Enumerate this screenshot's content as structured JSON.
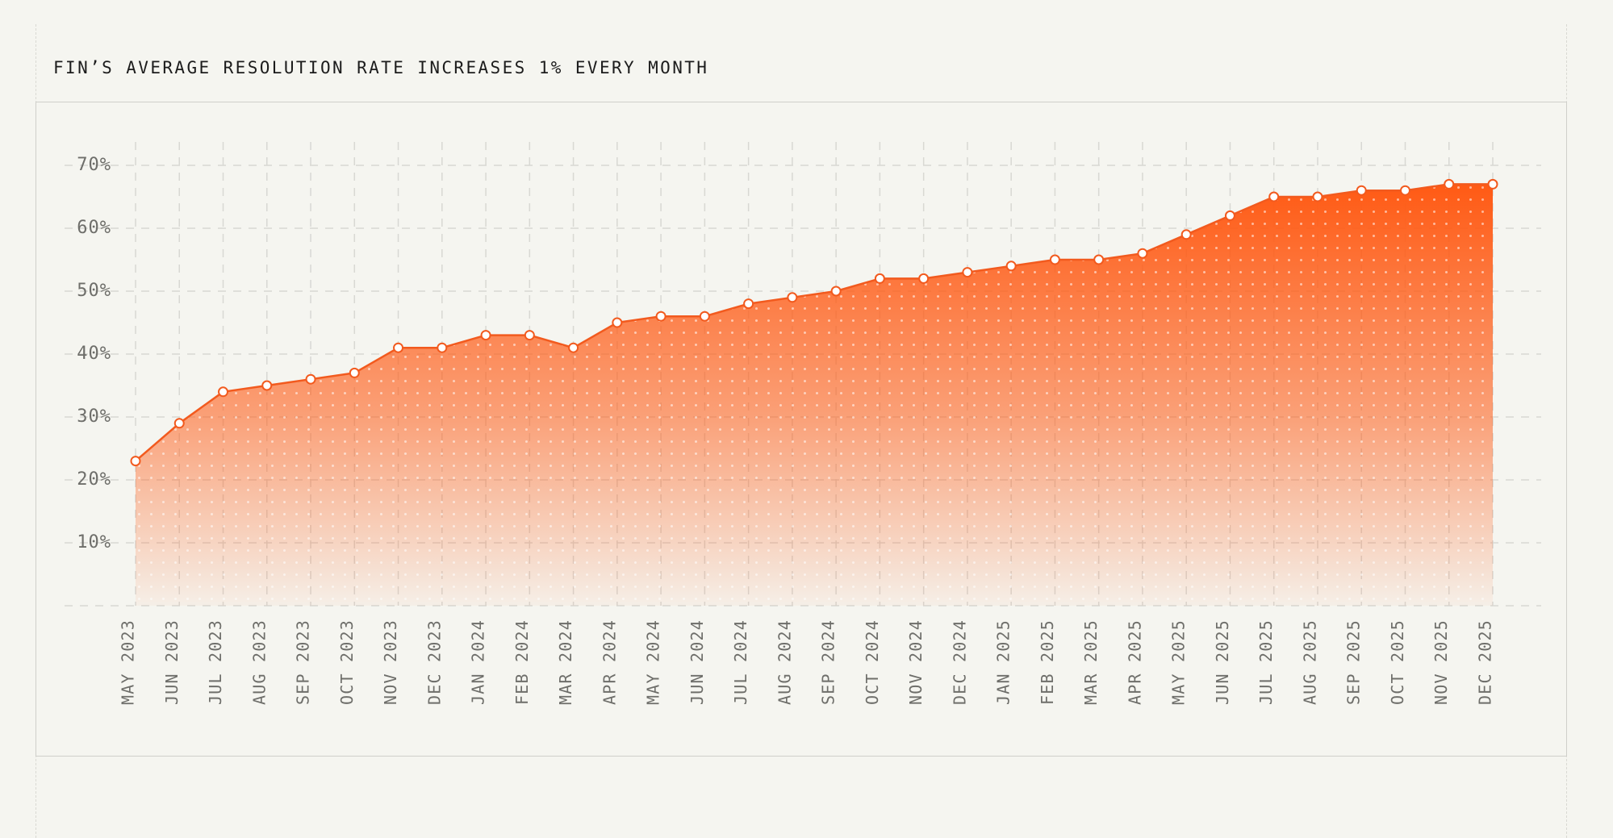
{
  "chart_data": {
    "type": "area",
    "title": "FIN’S AVERAGE RESOLUTION RATE INCREASES 1% EVERY MONTH",
    "xlabel": "",
    "ylabel": "",
    "categories": [
      "MAY 2023",
      "JUN 2023",
      "JUL 2023",
      "AUG 2023",
      "SEP 2023",
      "OCT 2023",
      "NOV 2023",
      "DEC 2023",
      "JAN 2024",
      "FEB 2024",
      "MAR 2024",
      "APR 2024",
      "MAY 2024",
      "JUN 2024",
      "JUL 2024",
      "AUG 2024",
      "SEP 2024",
      "OCT 2024",
      "NOV 2024",
      "DEC 2024",
      "JAN 2025",
      "FEB 2025",
      "MAR 2025",
      "APR 2025",
      "MAY 2025",
      "JUN 2025",
      "JUL 2025",
      "AUG 2025",
      "SEP 2025",
      "OCT 2025",
      "NOV 2025",
      "DEC 2025"
    ],
    "series": [
      {
        "values": [
          23,
          29,
          34,
          35,
          36,
          37,
          41,
          41,
          43,
          43,
          41,
          45,
          46,
          46,
          48,
          49,
          50,
          52,
          52,
          53,
          54,
          55,
          55,
          56,
          59,
          62,
          65,
          65,
          66,
          66,
          67,
          67
        ]
      }
    ],
    "ylim": [
      0,
      70
    ],
    "yticks": [
      {
        "value": 10,
        "label": "10%"
      },
      {
        "value": 20,
        "label": "20%"
      },
      {
        "value": 30,
        "label": "30%"
      },
      {
        "value": 40,
        "label": "40%"
      },
      {
        "value": 50,
        "label": "50%"
      },
      {
        "value": 60,
        "label": "60%"
      },
      {
        "value": 70,
        "label": "70%"
      }
    ],
    "grid": true,
    "legend": "none",
    "colors": {
      "accent": "#ff5a14",
      "line": "#f25a1e",
      "fill_top": "#ff5a14",
      "fill_bottom": "#ffffff",
      "grid": "#d8d8d3",
      "tick_text": "#6e6e6a",
      "background": "#f5f5f0"
    }
  }
}
